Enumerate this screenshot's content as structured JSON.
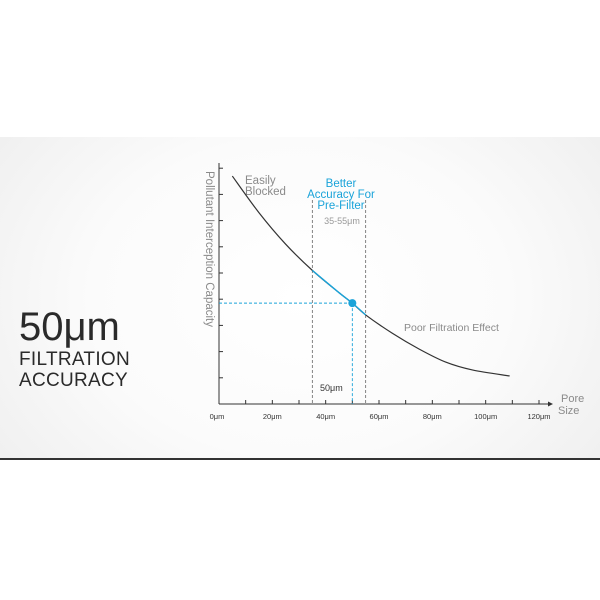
{
  "headline": {
    "value": "50μm",
    "line1": "FILTRATION",
    "line2": "ACCURACY"
  },
  "chart_data": {
    "type": "line",
    "title": "",
    "xlabel": "Pore Size",
    "xlabel_lines": [
      "Pore",
      "Size"
    ],
    "ylabel": "Pollutant Interception Capacity",
    "xlim": [
      0,
      120
    ],
    "ylim": [
      0,
      9
    ],
    "x_ticks": [
      0,
      20,
      40,
      60,
      80,
      100,
      120
    ],
    "x_tick_labels": [
      "0μm",
      "20μm",
      "40μm",
      "60μm",
      "80μm",
      "100μm",
      "120μm"
    ],
    "y_ticks": [
      1,
      2,
      3,
      4,
      5,
      6,
      7,
      8,
      9
    ],
    "grid": false,
    "series": [
      {
        "x": [
          5,
          15,
          25,
          35,
          45,
          50,
          55,
          65,
          75,
          85,
          95,
          109
        ],
        "y": [
          8.7,
          7.3,
          6.1,
          5.1,
          4.25,
          3.85,
          3.4,
          2.7,
          2.1,
          1.6,
          1.3,
          1.07
        ],
        "color": "#333333",
        "highlight_range": [
          35,
          55
        ],
        "highlight_color": "#1aa3d9"
      }
    ],
    "highlight_point": {
      "x": 50,
      "label": "50μm",
      "color": "#1aa3d9"
    },
    "band": {
      "range": [
        35,
        55
      ],
      "label": "35-55μm"
    },
    "annotations": {
      "easily_blocked": [
        "Easily",
        "Blocked"
      ],
      "better": [
        "Better",
        "Accuracy For",
        "Pre-Filter"
      ],
      "poor": "Poor Filtration Effect"
    },
    "colors": {
      "axis": "#333333",
      "accent": "#1aa3d9",
      "annotation_gray": "#8a8a8a"
    }
  }
}
